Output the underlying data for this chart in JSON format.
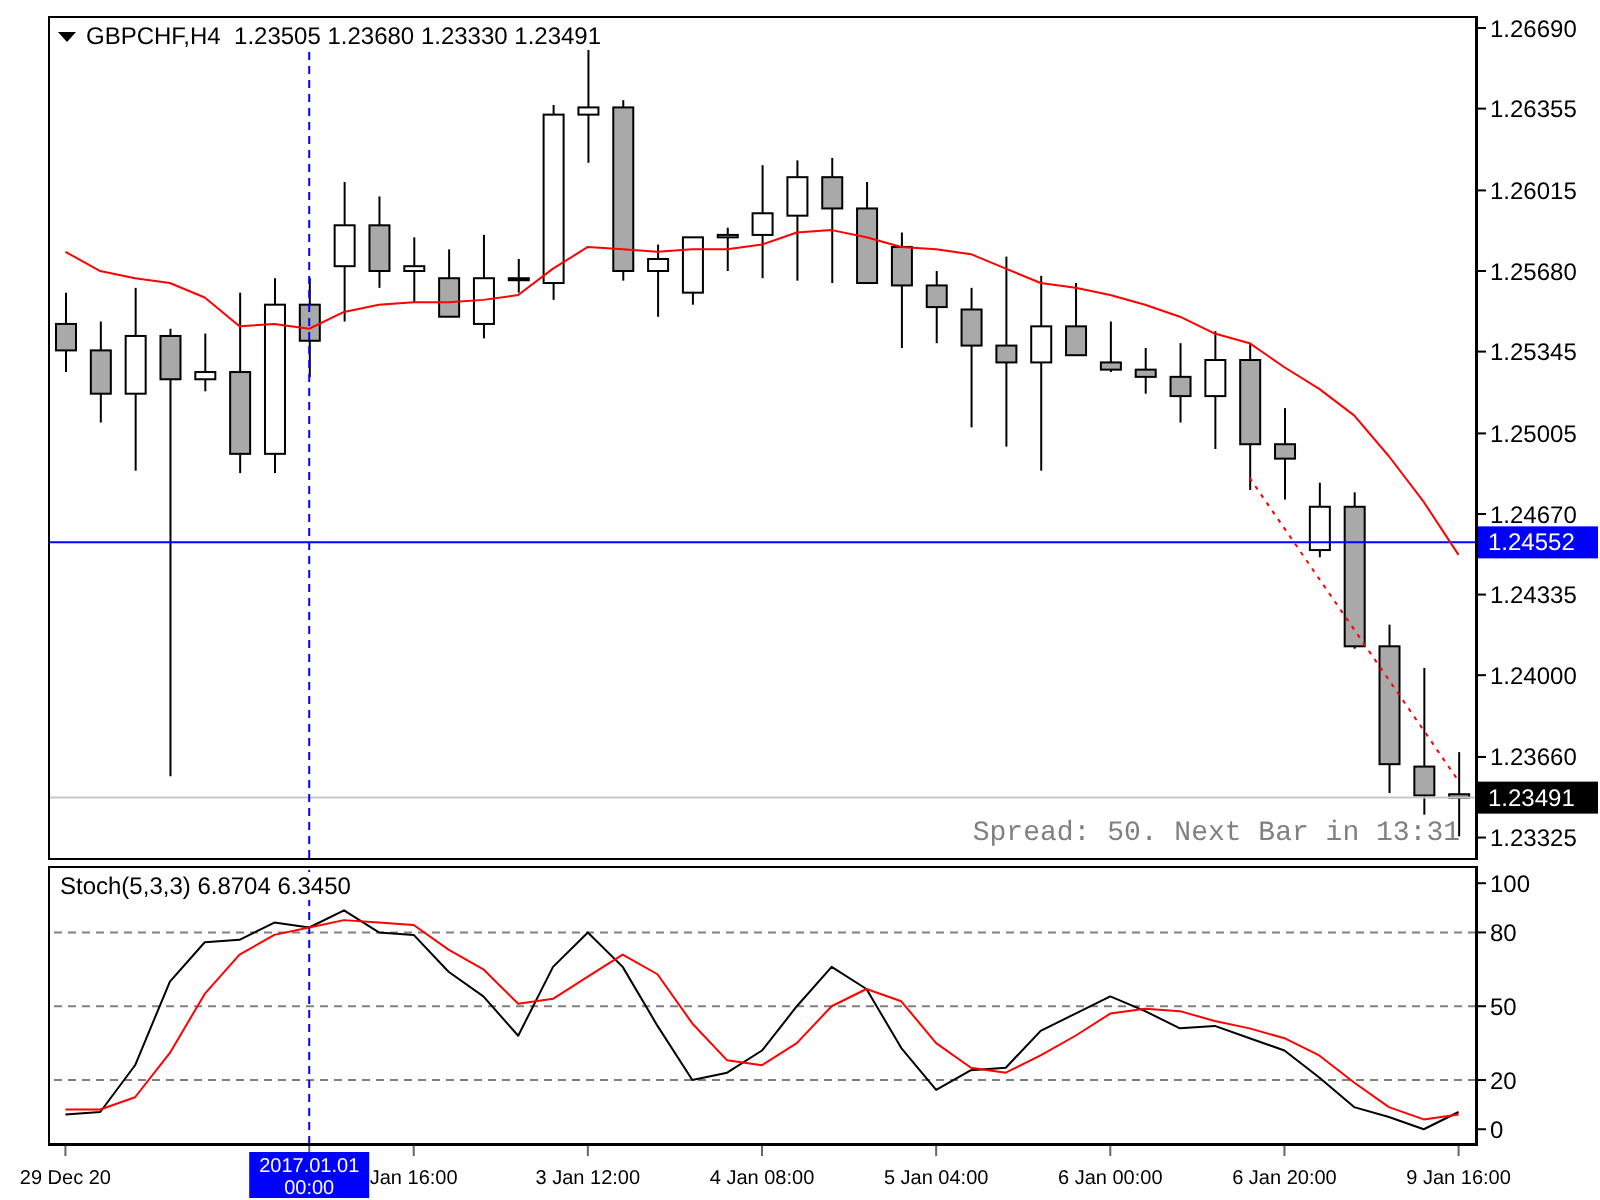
{
  "chart_data": [
    {
      "type": "candlestick",
      "title": "GBPCHF,H4  1.23505 1.23680 1.23330 1.23491",
      "tick_labels": "y",
      "marker": "none",
      "categories": [
        "29 Dec 20",
        null,
        null,
        null,
        null,
        null,
        null,
        "2017.01.01 00:00",
        null,
        null,
        "Jan 16:00",
        null,
        null,
        null,
        null,
        "3 Jan 12:00",
        null,
        null,
        null,
        null,
        "4 Jan 08:00",
        null,
        null,
        null,
        null,
        "5 Jan 04:00",
        null,
        null,
        null,
        null,
        "6 Jan 00:00",
        null,
        null,
        null,
        null,
        "6 Jan 20:00",
        null,
        null,
        null,
        null,
        "9 Jan 16:00"
      ],
      "ohlc": [
        [
          1.2546,
          1.2559,
          1.2526,
          1.2535
        ],
        [
          1.2535,
          1.2547,
          1.2505,
          1.2517
        ],
        [
          1.2517,
          1.2561,
          1.2485,
          1.2541
        ],
        [
          1.2541,
          1.2544,
          1.2358,
          1.2523
        ],
        [
          1.2523,
          1.2542,
          1.2518,
          1.2526
        ],
        [
          1.2526,
          1.2559,
          1.2484,
          1.2492
        ],
        [
          1.2492,
          1.2565,
          1.2484,
          1.2554
        ],
        [
          1.2554,
          1.2565,
          1.2524,
          1.2539
        ],
        [
          1.257,
          1.2605,
          1.2547,
          1.2587
        ],
        [
          1.2587,
          1.2599,
          1.2561,
          1.2568
        ],
        [
          1.2568,
          1.2582,
          1.2555,
          1.257
        ],
        [
          1.2565,
          1.2577,
          1.2549,
          1.2549
        ],
        [
          1.2546,
          1.2583,
          1.254,
          1.2565
        ],
        [
          1.2565,
          1.2573,
          1.2559,
          1.2565
        ],
        [
          1.2563,
          1.2637,
          1.2556,
          1.2633
        ],
        [
          1.2633,
          1.266,
          1.2613,
          1.2636
        ],
        [
          1.2636,
          1.2639,
          1.2564,
          1.2568
        ],
        [
          1.2568,
          1.2579,
          1.2549,
          1.2573
        ],
        [
          1.2559,
          1.2582,
          1.2554,
          1.2582
        ],
        [
          1.2582,
          1.2586,
          1.2568,
          1.2583
        ],
        [
          1.2583,
          1.2612,
          1.2565,
          1.2592
        ],
        [
          1.2591,
          1.2614,
          1.2564,
          1.2607
        ],
        [
          1.2607,
          1.2615,
          1.2563,
          1.2594
        ],
        [
          1.2594,
          1.2605,
          1.2563,
          1.2563
        ],
        [
          1.2578,
          1.2584,
          1.2536,
          1.2562
        ],
        [
          1.2562,
          1.2568,
          1.2538,
          1.2553
        ],
        [
          1.2552,
          1.2561,
          1.2503,
          1.2537
        ],
        [
          1.2537,
          1.2574,
          1.2495,
          1.253
        ],
        [
          1.253,
          1.2566,
          1.2485,
          1.2545
        ],
        [
          1.2545,
          1.2563,
          1.2533,
          1.2533
        ],
        [
          1.253,
          1.2547,
          1.2526,
          1.2527
        ],
        [
          1.2527,
          1.2536,
          1.2517,
          1.2524
        ],
        [
          1.2524,
          1.2538,
          1.2505,
          1.2516
        ],
        [
          1.2516,
          1.2543,
          1.2494,
          1.2531
        ],
        [
          1.2531,
          1.2538,
          1.2477,
          1.2496
        ],
        [
          1.2496,
          1.2511,
          1.2473,
          1.249
        ],
        [
          1.2452,
          1.248,
          1.2449,
          1.247
        ],
        [
          1.247,
          1.2476,
          1.2411,
          1.2412
        ],
        [
          1.2412,
          1.2421,
          1.2351,
          1.2363
        ],
        [
          1.2362,
          1.2403,
          1.2342,
          1.235
        ],
        [
          1.23505,
          1.2368,
          1.2333,
          1.23491
        ]
      ],
      "colors": [
        "#a9a9a9",
        "#a9a9a9",
        "#ffffff",
        "#a9a9a9",
        "#ffffff",
        "#a9a9a9",
        "#ffffff",
        "#a9a9a9",
        "#ffffff",
        "#a9a9a9",
        "#ffffff",
        "#a9a9a9",
        "#ffffff",
        "#ffffff",
        "#ffffff",
        "#ffffff",
        "#a9a9a9",
        "#ffffff",
        "#ffffff",
        "#ffffff",
        "#ffffff",
        "#ffffff",
        "#a9a9a9",
        "#a9a9a9",
        "#a9a9a9",
        "#a9a9a9",
        "#a9a9a9",
        "#a9a9a9",
        "#ffffff",
        "#a9a9a9",
        "#a9a9a9",
        "#a9a9a9",
        "#a9a9a9",
        "#ffffff",
        "#a9a9a9",
        "#a9a9a9",
        "#ffffff",
        "#a9a9a9",
        "#a9a9a9",
        "#a9a9a9",
        "#a9a9a9"
      ],
      "series": [
        {
          "type": "line",
          "color": "#ff0000",
          "values": [
            1.2576,
            1.2568,
            1.2565,
            1.2563,
            1.2557,
            1.2545,
            1.2546,
            1.2544,
            1.2551,
            1.2554,
            1.2555,
            1.2555,
            1.2556,
            1.2558,
            1.2569,
            1.2578,
            1.2577,
            1.2576,
            1.2577,
            1.2577,
            1.2579,
            1.2584,
            1.2585,
            1.2582,
            1.2578,
            1.2577,
            1.2575,
            1.2569,
            1.2563,
            1.2561,
            1.2558,
            1.2554,
            1.2549,
            1.2542,
            1.2538,
            1.2528,
            1.2519,
            1.2508,
            1.2491,
            1.2472,
            1.245
          ]
        },
        {
          "type": "line",
          "color": "#ff0000",
          "line_style": "dotted",
          "values": [
            null,
            null,
            null,
            null,
            null,
            null,
            null,
            null,
            null,
            null,
            null,
            null,
            null,
            null,
            null,
            null,
            null,
            null,
            null,
            null,
            null,
            null,
            null,
            null,
            null,
            null,
            null,
            null,
            null,
            null,
            null,
            null,
            null,
            null,
            1.2482,
            1.2461,
            1.244,
            1.2419,
            1.2398,
            1.2377,
            1.2356
          ]
        }
      ],
      "ylim": [
        1.2324,
        1.2674
      ],
      "yticks": [
        {
          "value": 1.2669,
          "label": "1.26690"
        },
        1.26355,
        1.26015,
        {
          "value": 1.2568,
          "label": "1.25680"
        },
        1.25345,
        1.25005,
        {
          "value": 1.2467,
          "label": "1.24670"
        },
        1.24335,
        {
          "value": 1.24,
          "label": "1.24000"
        },
        {
          "value": 1.2366,
          "label": "1.23660"
        },
        1.23325
      ],
      "ref_lines": [
        {
          "axis": "y",
          "value": 1.24552,
          "label": "1.24552",
          "color": "#0000ff"
        },
        {
          "axis": "y",
          "value": 1.23491,
          "label": "1.23491",
          "color": "#c8c8c8"
        },
        {
          "axis": "x",
          "value": "2017.01.01 00:00",
          "color": "#0000ff",
          "line_style": "dashed"
        }
      ],
      "annotations": [
        "Spread: 50. Next Bar in 13:31"
      ]
    },
    {
      "type": "line",
      "title": "Stoch(5,3,3) 6.8704 6.3450",
      "marker": "none",
      "categories": [
        "29 Dec 20",
        null,
        null,
        null,
        null,
        null,
        null,
        "2017.01.01 00:00",
        null,
        null,
        "Jan 16:00",
        null,
        null,
        null,
        null,
        "3 Jan 12:00",
        null,
        null,
        null,
        null,
        "4 Jan 08:00",
        null,
        null,
        null,
        null,
        "5 Jan 04:00",
        null,
        null,
        null,
        null,
        "6 Jan 00:00",
        null,
        null,
        null,
        null,
        "6 Jan 20:00",
        null,
        null,
        null,
        null,
        "9 Jan 16:00"
      ],
      "series": [
        {
          "color": "#000000",
          "values": [
            6,
            7,
            26,
            60,
            76,
            77,
            84,
            82,
            89,
            80,
            79,
            64,
            54,
            38,
            66,
            80,
            66,
            42,
            20,
            23,
            32,
            50,
            66,
            57,
            33,
            16,
            24,
            25,
            40,
            47,
            54,
            48,
            41,
            42,
            37,
            32,
            21,
            9,
            5,
            0,
            7
          ]
        },
        {
          "color": "#ff0000",
          "values": [
            8,
            8,
            13,
            31,
            55,
            71,
            79,
            82,
            85,
            84,
            83,
            73,
            65,
            51,
            53,
            62,
            71,
            63,
            43,
            28,
            26,
            35,
            50,
            57,
            52,
            35,
            25,
            23,
            30,
            38,
            47,
            49,
            48,
            44,
            41,
            37,
            30,
            19,
            9,
            4,
            6
          ]
        }
      ],
      "ylim": [
        -6,
        107
      ],
      "yticks": [
        0,
        20,
        50,
        80,
        100
      ],
      "ref_lines": [
        {
          "axis": "y",
          "value": 20,
          "color": "#808080",
          "line_style": "dashed"
        },
        {
          "axis": "y",
          "value": 50,
          "color": "#808080",
          "line_style": "dashed"
        },
        {
          "axis": "y",
          "value": 80,
          "color": "#808080",
          "line_style": "dashed"
        },
        {
          "axis": "x",
          "value": "2017.01.01 00:00",
          "color": "#0000ff",
          "line_style": "dashed"
        }
      ]
    }
  ]
}
